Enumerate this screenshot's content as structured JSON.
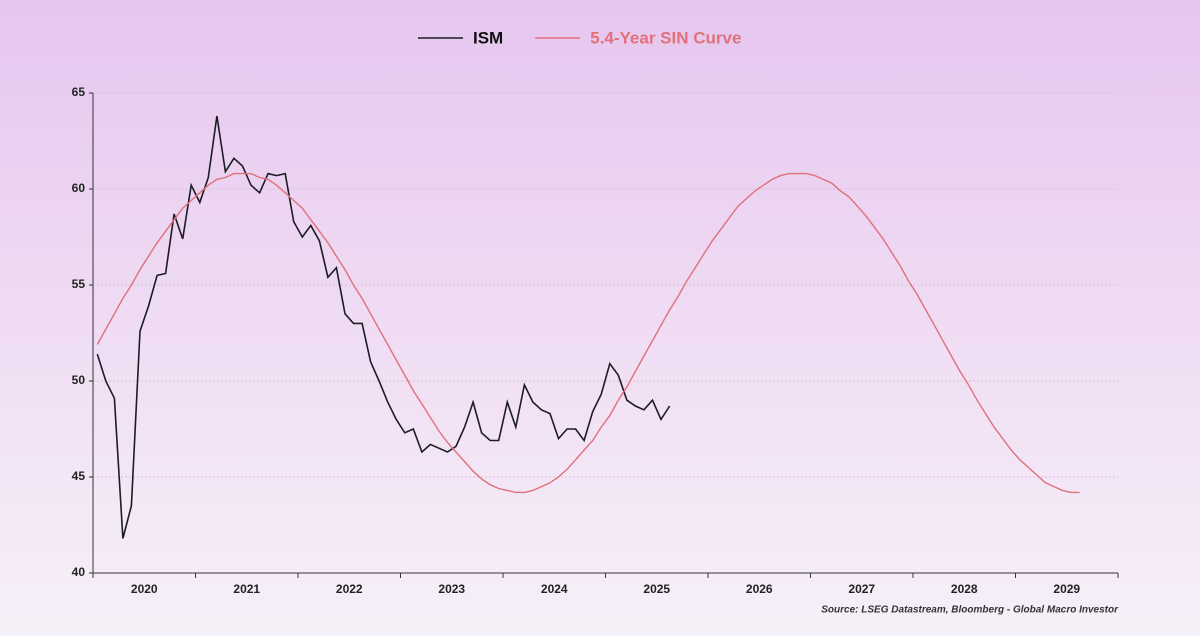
{
  "chart_data": {
    "type": "line",
    "legend": "top",
    "categories": [
      null,
      null,
      null,
      null,
      null,
      null,
      "2020",
      null,
      null,
      null,
      null,
      null,
      null,
      null,
      null,
      null,
      null,
      null,
      "2021",
      null,
      null,
      null,
      null,
      null,
      null,
      null,
      null,
      null,
      null,
      null,
      "2022",
      null,
      null,
      null,
      null,
      null,
      null,
      null,
      null,
      null,
      null,
      null,
      "2023",
      null,
      null,
      null,
      null,
      null,
      null,
      null,
      null,
      null,
      null,
      null,
      "2024",
      null,
      null,
      null,
      null,
      null,
      null,
      null,
      null,
      null,
      null,
      null,
      "2025",
      null,
      null,
      null,
      null,
      null,
      null,
      null,
      null,
      null,
      null,
      null,
      "2026",
      null,
      null,
      null,
      null,
      null,
      null,
      null,
      null,
      null,
      null,
      null,
      "2027",
      null,
      null,
      null,
      null,
      null,
      null,
      null,
      null,
      null,
      null,
      null,
      "2028",
      null,
      null,
      null,
      null,
      null,
      null,
      null,
      null,
      null,
      null,
      null,
      "2029",
      null,
      null,
      null,
      null,
      null
    ],
    "series": [
      {
        "name": "ISM",
        "color": "#1c1c24",
        "values": [
          51.4,
          50.0,
          49.1,
          41.8,
          43.5,
          52.6,
          53.9,
          55.5,
          55.6,
          58.7,
          57.4,
          60.2,
          59.3,
          60.6,
          63.8,
          60.9,
          61.6,
          61.2,
          60.2,
          59.8,
          60.8,
          60.7,
          60.8,
          58.3,
          57.5,
          58.1,
          57.3,
          55.4,
          55.9,
          53.5,
          53.0,
          53.0,
          51.0,
          50.0,
          48.9,
          48.0,
          47.3,
          47.5,
          46.3,
          46.7,
          46.5,
          46.3,
          46.6,
          47.6,
          48.9,
          47.3,
          46.9,
          46.9,
          48.9,
          47.6,
          49.8,
          48.9,
          48.5,
          48.3,
          47.0,
          47.5,
          47.5,
          46.9,
          48.4,
          49.3,
          50.9,
          50.3,
          49.0,
          48.7,
          48.5,
          49.0,
          48.0,
          48.7,
          null,
          null,
          null,
          null,
          null,
          null,
          null,
          null,
          null,
          null,
          null,
          null,
          null,
          null,
          null,
          null,
          null,
          null,
          null,
          null,
          null,
          null,
          null,
          null,
          null,
          null,
          null,
          null,
          null,
          null,
          null,
          null,
          null,
          null,
          null,
          null,
          null,
          null,
          null,
          null,
          null,
          null,
          null,
          null,
          null,
          null,
          null,
          null,
          null,
          null,
          null,
          null
        ]
      },
      {
        "name": "5.4-Year SIN Curve",
        "color": "#e0707a",
        "values": [
          51.9,
          52.7,
          53.5,
          54.3,
          55.0,
          55.8,
          56.5,
          57.2,
          57.8,
          58.4,
          59.0,
          59.4,
          59.8,
          60.2,
          60.5,
          60.6,
          60.8,
          60.8,
          60.8,
          60.6,
          60.5,
          60.2,
          59.8,
          59.4,
          59.0,
          58.4,
          57.8,
          57.2,
          56.5,
          55.8,
          55.0,
          54.3,
          53.5,
          52.7,
          51.9,
          51.1,
          50.3,
          49.5,
          48.8,
          48.1,
          47.4,
          46.8,
          46.3,
          45.8,
          45.3,
          44.9,
          44.6,
          44.4,
          44.3,
          44.2,
          44.2,
          44.3,
          44.5,
          44.7,
          45.0,
          45.4,
          45.9,
          46.4,
          46.9,
          47.6,
          48.2,
          49.0,
          49.7,
          50.5,
          51.3,
          52.1,
          52.9,
          53.7,
          54.4,
          55.2,
          55.9,
          56.6,
          57.3,
          57.9,
          58.5,
          59.1,
          59.5,
          59.9,
          60.2,
          60.5,
          60.7,
          60.8,
          60.8,
          60.8,
          60.7,
          60.5,
          60.3,
          59.9,
          59.6,
          59.1,
          58.6,
          58.0,
          57.4,
          56.7,
          56.0,
          55.2,
          54.5,
          53.7,
          52.9,
          52.1,
          51.3,
          50.5,
          49.8,
          49.0,
          48.3,
          47.6,
          47.0,
          46.4,
          45.9,
          45.5,
          45.1,
          44.7,
          44.5,
          44.3,
          44.2,
          44.2,
          null,
          null,
          null,
          null
        ]
      }
    ],
    "ylim": [
      40,
      65
    ],
    "yticks": [
      40,
      45,
      50,
      55,
      60,
      65
    ],
    "grid": true,
    "source": "Source: LSEG Datastream, Bloomberg - Global Macro Investor"
  }
}
